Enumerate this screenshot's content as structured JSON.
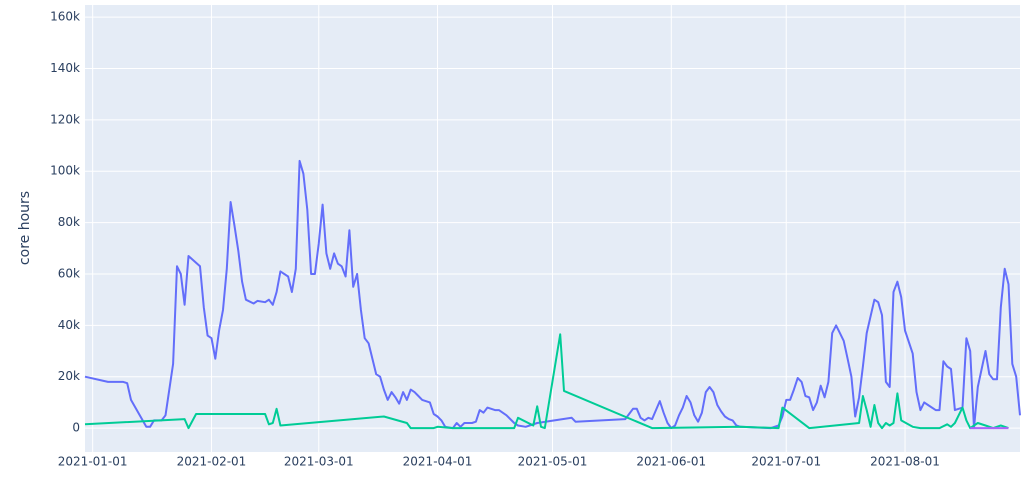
{
  "chart_data": {
    "type": "line",
    "y_label": "core hours",
    "xlim": [
      "2020-12-30",
      "2021-08-31"
    ],
    "xticks": [
      "2021-01-01",
      "2021-02-01",
      "2021-03-01",
      "2021-04-01",
      "2021-05-01",
      "2021-06-01",
      "2021-07-01",
      "2021-08-01"
    ],
    "ylim": [
      -9300,
      164700
    ],
    "yticks": [
      0,
      {
        "value": 20000,
        "label": "20k"
      },
      {
        "value": 40000,
        "label": "40k"
      },
      {
        "value": 60000,
        "label": "60k"
      },
      {
        "value": 80000,
        "label": "80k"
      },
      {
        "value": 100000,
        "label": "100k"
      },
      {
        "value": 120000,
        "label": "120k"
      },
      {
        "value": 140000,
        "label": "140k"
      },
      {
        "value": 160000,
        "label": "160k"
      }
    ],
    "grid": true,
    "series": [
      {
        "color": "#636efa",
        "x": [
          "2020-12-30",
          "2021-01-05",
          "2021-01-09",
          "2021-01-10",
          "2021-01-11",
          "2021-01-15",
          "2021-01-16",
          "2021-01-17",
          "2021-01-19",
          "2021-01-20",
          "2021-01-22",
          "2021-01-23",
          "2021-01-24",
          "2021-01-25",
          "2021-01-26",
          "2021-01-29",
          "2021-01-30",
          "2021-01-31",
          "2021-02-01",
          "2021-02-02",
          "2021-02-03",
          "2021-02-04",
          "2021-02-05",
          "2021-02-06",
          "2021-02-07",
          "2021-02-08",
          "2021-02-09",
          "2021-02-10",
          "2021-02-12",
          "2021-02-13",
          "2021-02-15",
          "2021-02-16",
          "2021-02-17",
          "2021-02-18",
          "2021-02-19",
          "2021-02-21",
          "2021-02-22",
          "2021-02-23",
          "2021-02-24",
          "2021-02-25",
          "2021-02-26",
          "2021-02-27",
          "2021-02-28",
          "2021-03-01",
          "2021-03-02",
          "2021-03-03",
          "2021-03-04",
          "2021-03-05",
          "2021-03-06",
          "2021-03-07",
          "2021-03-08",
          "2021-03-09",
          "2021-03-10",
          "2021-03-11",
          "2021-03-12",
          "2021-03-13",
          "2021-03-14",
          "2021-03-15",
          "2021-03-16",
          "2021-03-17",
          "2021-03-18",
          "2021-03-19",
          "2021-03-20",
          "2021-03-21",
          "2021-03-22",
          "2021-03-23",
          "2021-03-24",
          "2021-03-25",
          "2021-03-26",
          "2021-03-27",
          "2021-03-28",
          "2021-03-30",
          "2021-03-31",
          "2021-04-01",
          "2021-04-02",
          "2021-04-03",
          "2021-04-05",
          "2021-04-06",
          "2021-04-07",
          "2021-04-08",
          "2021-04-10",
          "2021-04-11",
          "2021-04-12",
          "2021-04-13",
          "2021-04-14",
          "2021-04-16",
          "2021-04-17",
          "2021-04-19",
          "2021-04-21",
          "2021-04-22",
          "2021-04-24",
          "2021-04-27",
          "2021-05-06",
          "2021-05-07",
          "2021-05-20",
          "2021-05-21",
          "2021-05-22",
          "2021-05-23",
          "2021-05-24",
          "2021-05-25",
          "2021-05-26",
          "2021-05-27",
          "2021-05-29",
          "2021-05-30",
          "2021-05-31",
          "2021-06-01",
          "2021-06-02",
          "2021-06-03",
          "2021-06-04",
          "2021-06-05",
          "2021-06-06",
          "2021-06-07",
          "2021-06-08",
          "2021-06-09",
          "2021-06-10",
          "2021-06-11",
          "2021-06-12",
          "2021-06-13",
          "2021-06-14",
          "2021-06-15",
          "2021-06-16",
          "2021-06-17",
          "2021-06-18",
          "2021-06-19",
          "2021-06-27",
          "2021-06-29",
          "2021-06-30",
          "2021-07-01",
          "2021-07-02",
          "2021-07-03",
          "2021-07-04",
          "2021-07-05",
          "2021-07-06",
          "2021-07-07",
          "2021-07-08",
          "2021-07-09",
          "2021-07-10",
          "2021-07-11",
          "2021-07-12",
          "2021-07-13",
          "2021-07-14",
          "2021-07-15",
          "2021-07-16",
          "2021-07-17",
          "2021-07-18",
          "2021-07-19",
          "2021-07-20",
          "2021-07-21",
          "2021-07-22",
          "2021-07-24",
          "2021-07-25",
          "2021-07-26",
          "2021-07-27",
          "2021-07-28",
          "2021-07-29",
          "2021-07-30",
          "2021-07-31",
          "2021-08-01",
          "2021-08-03",
          "2021-08-04",
          "2021-08-05",
          "2021-08-06",
          "2021-08-07",
          "2021-08-09",
          "2021-08-10",
          "2021-08-11",
          "2021-08-12",
          "2021-08-13",
          "2021-08-14",
          "2021-08-16",
          "2021-08-17",
          "2021-08-18",
          "2021-08-19",
          "2021-08-20",
          "2021-08-22",
          "2021-08-23",
          "2021-08-24",
          "2021-08-25",
          "2021-08-26",
          "2021-08-27",
          "2021-08-28",
          "2021-08-29",
          "2021-08-30",
          "2021-08-31"
        ],
        "values": [
          20000,
          18000,
          18000,
          17500,
          11000,
          500,
          500,
          3000,
          3000,
          5000,
          25000,
          63000,
          60000,
          48000,
          67000,
          63000,
          47000,
          36000,
          35000,
          27000,
          38000,
          46000,
          62000,
          88000,
          79000,
          69000,
          57000,
          50000,
          48500,
          49500,
          49000,
          50000,
          48000,
          53000,
          61000,
          59000,
          53000,
          62000,
          104000,
          99000,
          85000,
          60000,
          60000,
          72000,
          87000,
          68000,
          62000,
          68000,
          64000,
          63000,
          59000,
          77000,
          55000,
          60000,
          46000,
          35000,
          33000,
          27000,
          21000,
          20000,
          15000,
          11000,
          14000,
          12000,
          9500,
          14000,
          11000,
          15000,
          14000,
          12500,
          11000,
          10000,
          5500,
          4500,
          3000,
          500,
          0,
          2000,
          500,
          2000,
          2000,
          2500,
          7000,
          6000,
          8000,
          7000,
          7000,
          5000,
          2000,
          1000,
          500,
          2000,
          4000,
          2500,
          3500,
          5500,
          7500,
          7500,
          4000,
          3000,
          4000,
          3500,
          10500,
          6000,
          2000,
          0,
          1000,
          5000,
          8000,
          12500,
          10000,
          5000,
          2500,
          6000,
          14000,
          16000,
          14000,
          9000,
          6500,
          4500,
          3500,
          3000,
          1000,
          500,
          0,
          1000,
          4500,
          11000,
          11000,
          15000,
          19500,
          18000,
          12500,
          12000,
          7000,
          10000,
          16500,
          12000,
          18000,
          37000,
          40000,
          37000,
          34000,
          27000,
          20000,
          4500,
          12000,
          24000,
          37000,
          50000,
          49000,
          44000,
          18000,
          16000,
          53000,
          57000,
          51000,
          38000,
          29000,
          14000,
          7000,
          10000,
          9000,
          7000,
          7000,
          26000,
          24000,
          23000,
          7000,
          8000,
          35000,
          30000,
          0,
          16000,
          30000,
          21000,
          19000,
          19000,
          47000,
          62000,
          56000,
          25000,
          20000,
          5000
        ]
      },
      {
        "color": "#00cc96",
        "x": [
          "2020-12-30",
          "2021-01-25",
          "2021-01-26",
          "2021-01-28",
          "2021-02-15",
          "2021-02-16",
          "2021-02-17",
          "2021-02-18",
          "2021-02-19",
          "2021-03-18",
          "2021-03-24",
          "2021-03-25",
          "2021-03-31",
          "2021-04-01",
          "2021-04-05",
          "2021-04-21",
          "2021-04-22",
          "2021-04-26",
          "2021-04-27",
          "2021-04-28",
          "2021-04-29",
          "2021-05-03",
          "2021-05-04",
          "2021-05-27",
          "2021-06-19",
          "2021-06-29",
          "2021-06-30",
          "2021-07-07",
          "2021-07-20",
          "2021-07-21",
          "2021-07-22",
          "2021-07-23",
          "2021-07-24",
          "2021-07-25",
          "2021-07-26",
          "2021-07-27",
          "2021-07-28",
          "2021-07-29",
          "2021-07-30",
          "2021-07-31",
          "2021-08-03",
          "2021-08-05",
          "2021-08-10",
          "2021-08-12",
          "2021-08-13",
          "2021-08-14",
          "2021-08-16",
          "2021-08-17",
          "2021-08-18",
          "2021-08-20",
          "2021-08-22",
          "2021-08-24",
          "2021-08-26",
          "2021-08-28"
        ],
        "values": [
          1500,
          3500,
          0,
          5500,
          5500,
          1500,
          2000,
          7500,
          1000,
          4500,
          2000,
          0,
          0,
          500,
          0,
          0,
          4000,
          1000,
          8500,
          500,
          0,
          36500,
          14500,
          0,
          500,
          0,
          8000,
          0,
          2000,
          12500,
          7000,
          500,
          9000,
          2000,
          0,
          2000,
          1000,
          2000,
          13500,
          3000,
          500,
          0,
          0,
          1500,
          500,
          2000,
          8000,
          3000,
          0,
          2000,
          1000,
          0,
          1000,
          0
        ]
      },
      {
        "color": "#ab63fa",
        "x": [
          "2021-08-18",
          "2021-08-22",
          "2021-08-28"
        ],
        "values": [
          0,
          0,
          0
        ]
      }
    ]
  }
}
